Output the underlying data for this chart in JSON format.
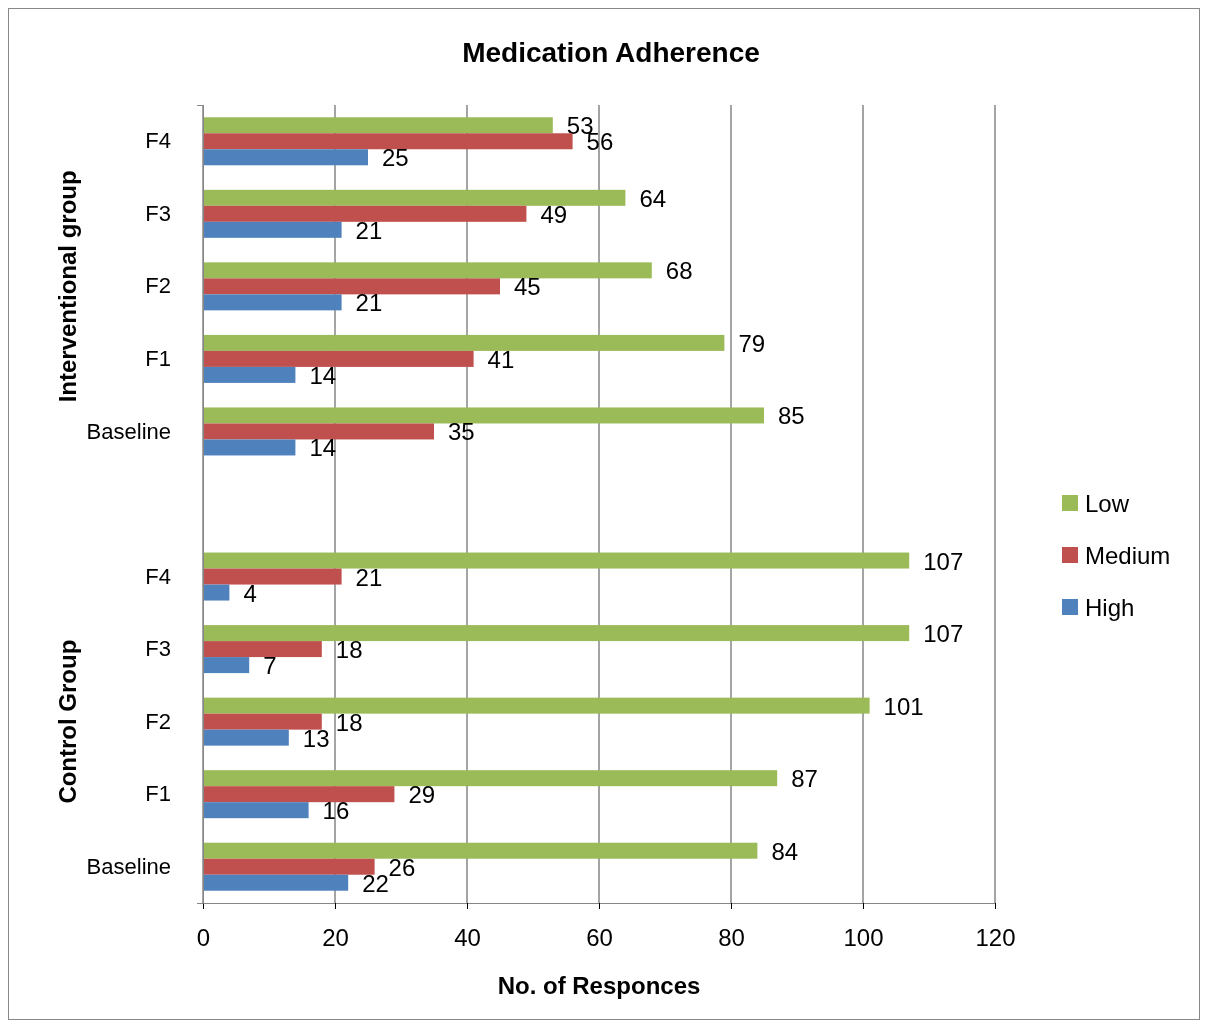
{
  "chart_data": {
    "type": "bar",
    "orientation": "horizontal",
    "title": "Medication Adherence",
    "xlabel": "No. of Responces",
    "categories": [
      "F4",
      "F3",
      "F2",
      "F1",
      "Baseline",
      null,
      "F4",
      "F3",
      "F2",
      "F1",
      "Baseline"
    ],
    "series": [
      {
        "name": "Low",
        "color": "#9bbb59",
        "values": [
          53,
          64,
          68,
          79,
          85,
          null,
          107,
          107,
          101,
          87,
          84
        ]
      },
      {
        "name": "Medium",
        "color": "#c0504d",
        "values": [
          56,
          49,
          45,
          41,
          35,
          null,
          21,
          18,
          18,
          29,
          26
        ]
      },
      {
        "name": "High",
        "color": "#4f81bd",
        "values": [
          25,
          21,
          21,
          14,
          14,
          null,
          4,
          7,
          13,
          16,
          22
        ]
      }
    ],
    "annotations": [
      "Interventional group",
      "Control Group"
    ],
    "xlim": [
      0,
      120
    ],
    "xticks": [
      0,
      20,
      40,
      60,
      80,
      100,
      120
    ],
    "grid": "x",
    "legend": "right",
    "data_labels": true
  }
}
